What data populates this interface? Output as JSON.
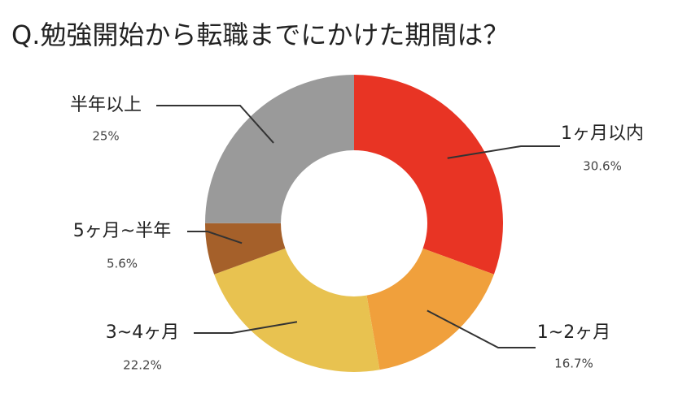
{
  "chart_data": {
    "type": "pie",
    "title": "Q.勉強開始から転職までにかけた期間は？",
    "categories": [
      "1ヶ月以内",
      "1~2ヶ月",
      "3~4ヶ月",
      "5ヶ月~半年",
      "半年以上"
    ],
    "values": [
      30.6,
      16.7,
      22.2,
      5.6,
      25
    ],
    "value_labels": [
      "30.6%",
      "16.7%",
      "22.2%",
      "5.6%",
      "25%"
    ],
    "colors": [
      "#e83424",
      "#f0a03c",
      "#e8c250",
      "#a5602a",
      "#9a9a9a"
    ]
  }
}
